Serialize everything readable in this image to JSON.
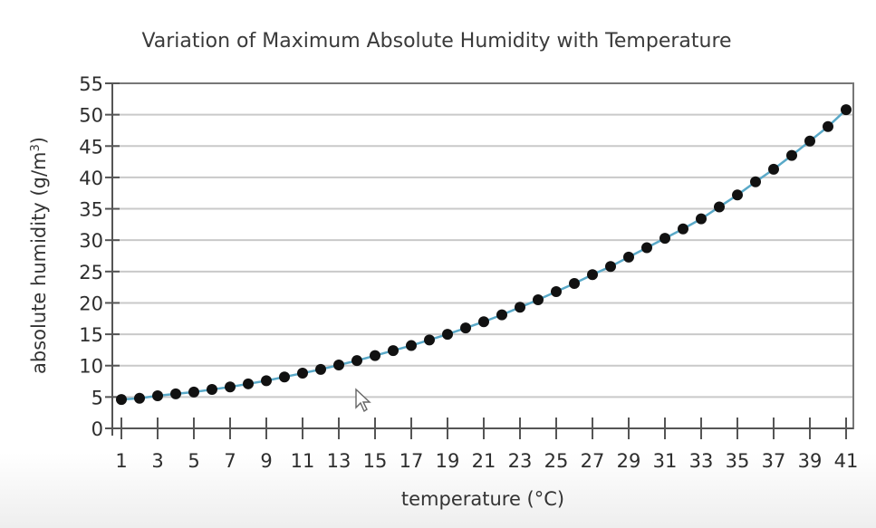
{
  "chart_data": {
    "type": "line",
    "title": "Variation of Maximum Absolute Humidity with Temperature",
    "xlabel": "temperature (°C)",
    "ylabel": "absolute humidity (g/m³)",
    "xlim": [
      1,
      41
    ],
    "ylim": [
      0,
      55
    ],
    "x_ticks": [
      1,
      3,
      5,
      7,
      9,
      11,
      13,
      15,
      17,
      19,
      21,
      23,
      25,
      27,
      29,
      31,
      33,
      35,
      37,
      39,
      41
    ],
    "y_ticks": [
      0,
      5,
      10,
      15,
      20,
      25,
      30,
      35,
      40,
      45,
      50,
      55
    ],
    "grid": "horizontal",
    "legend": "none",
    "series": [
      {
        "name": "maximum absolute humidity",
        "line_color": "#5aa9c8",
        "marker_color": "#111111",
        "x": [
          1,
          2,
          3,
          4,
          5,
          6,
          7,
          8,
          9,
          10,
          11,
          12,
          13,
          14,
          15,
          16,
          17,
          18,
          19,
          20,
          21,
          22,
          23,
          24,
          25,
          26,
          27,
          28,
          29,
          30,
          31,
          32,
          33,
          34,
          35,
          36,
          37,
          38,
          39,
          40,
          41
        ],
        "values": [
          4.6,
          4.8,
          5.2,
          5.5,
          5.8,
          6.2,
          6.6,
          7.1,
          7.6,
          8.2,
          8.8,
          9.4,
          10.1,
          10.8,
          11.6,
          12.4,
          13.2,
          14.1,
          15.0,
          16.0,
          17.0,
          18.1,
          19.3,
          20.5,
          21.8,
          23.1,
          24.5,
          25.8,
          27.3,
          28.8,
          30.3,
          31.8,
          33.4,
          35.3,
          37.2,
          39.3,
          41.3,
          43.5,
          45.8,
          48.1,
          50.8
        ]
      }
    ]
  },
  "labels": {
    "title": "Variation of Maximum Absolute Humidity with Temperature",
    "xlabel": "temperature (°C)",
    "ylabel_main": "absolute humidity (g/m",
    "ylabel_sup": "3",
    "ylabel_end": ")"
  }
}
